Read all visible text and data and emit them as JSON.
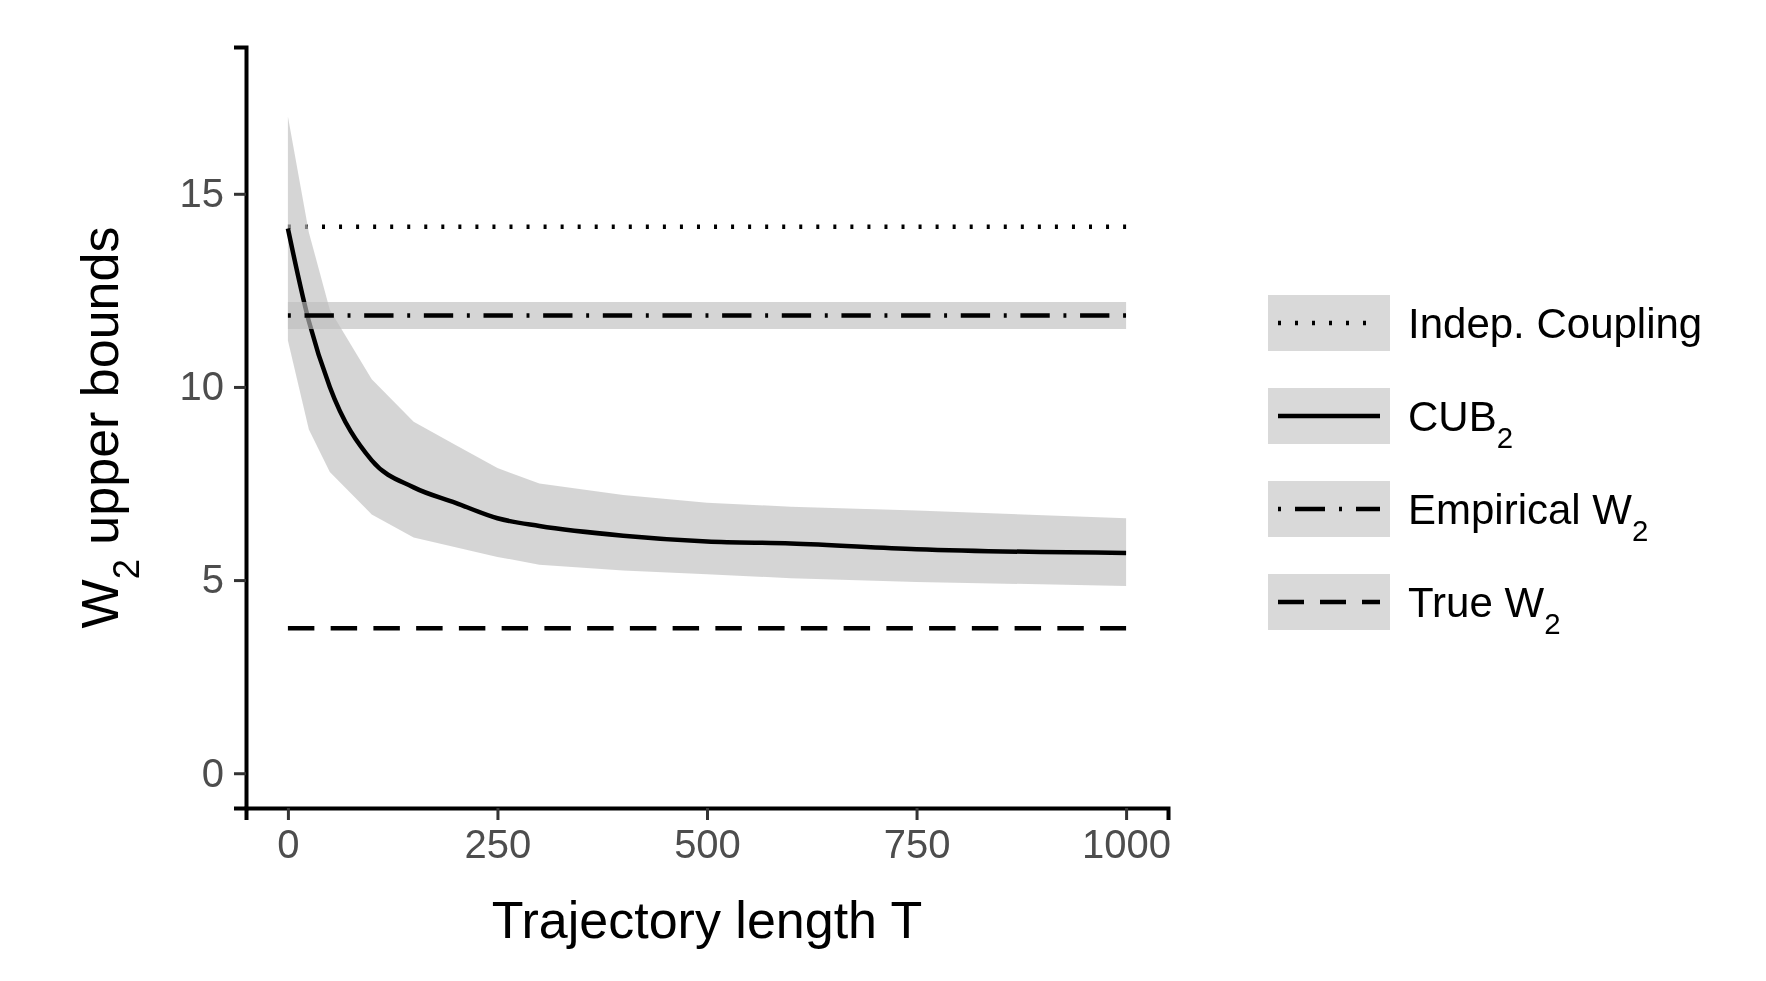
{
  "chart_data": {
    "type": "line",
    "xlabel": "Trajectory length T",
    "ylabel": "W$_{2}$ upper bounds",
    "xlim": [
      -50,
      1050
    ],
    "ylim": [
      -0.9,
      18.8
    ],
    "xticks": [
      0,
      250,
      500,
      750,
      1000
    ],
    "yticks": [
      0,
      5,
      10,
      15
    ],
    "grid": false,
    "legend": "right",
    "series": [
      {
        "name": "Indep. Coupling",
        "color": "#000000",
        "line_style": "dotted",
        "x": [
          0,
          1000
        ],
        "values": [
          14.15,
          14.15
        ]
      },
      {
        "name": "CUB$_{2}$",
        "color": "#000000",
        "line_style": "solid",
        "x": [
          0,
          25,
          50,
          100,
          150,
          200,
          250,
          300,
          400,
          500,
          600,
          750,
          1000
        ],
        "values": [
          14.1,
          11.7,
          10.0,
          8.1,
          7.4,
          7.0,
          6.6,
          6.4,
          6.15,
          6.0,
          5.95,
          5.8,
          5.7
        ],
        "lower": [
          11.2,
          8.9,
          7.8,
          6.7,
          6.1,
          5.85,
          5.6,
          5.4,
          5.25,
          5.15,
          5.05,
          4.95,
          4.85
        ],
        "upper": [
          17.0,
          14.0,
          12.0,
          10.2,
          9.1,
          8.5,
          7.9,
          7.5,
          7.2,
          7.0,
          6.9,
          6.8,
          6.6
        ]
      },
      {
        "name": "Empirical W$_{2}$",
        "color": "#000000",
        "line_style": "dashdot",
        "x": [
          0,
          1000
        ],
        "values": [
          11.85,
          11.85
        ],
        "lower": [
          11.5,
          11.5
        ],
        "upper": [
          12.2,
          12.2
        ]
      },
      {
        "name": "True W$_{2}$",
        "color": "#000000",
        "line_style": "dashed",
        "x": [
          0,
          1000
        ],
        "values": [
          3.75,
          3.75
        ]
      }
    ]
  }
}
